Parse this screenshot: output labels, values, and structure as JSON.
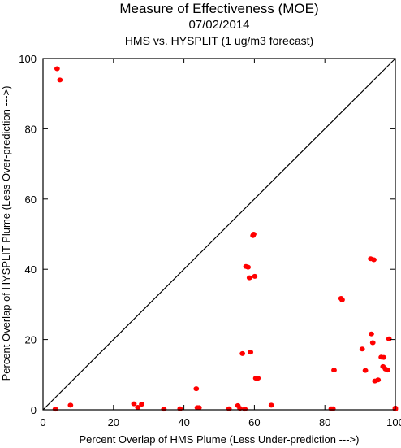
{
  "chart_data": {
    "type": "scatter",
    "title": "Measure of Effectiveness (MOE)",
    "subtitle_date": "07/02/2014",
    "subtitle": "HMS vs. HYSPLIT  (1 ug/m3 forecast)",
    "xlabel": "Percent Overlap of HMS Plume (Less Under-prediction --->)",
    "ylabel": "Percent Overlap of HYSPLIT Plume (Less Over-prediction --->)",
    "xlim": [
      0,
      100
    ],
    "ylim": [
      0,
      100
    ],
    "xticks": [
      "0",
      "20",
      "40",
      "60",
      "80",
      "100"
    ],
    "yticks": [
      "0",
      "20",
      "40",
      "60",
      "80",
      "100"
    ],
    "grid": false,
    "reference_line": "diagonal 1:1 line",
    "marker_color": "#ff0000",
    "points": [
      {
        "x": 4.0,
        "y": 97.1
      },
      {
        "x": 4.8,
        "y": 93.9
      },
      {
        "x": 3.5,
        "y": 0.2
      },
      {
        "x": 7.8,
        "y": 1.3
      },
      {
        "x": 25.8,
        "y": 1.7
      },
      {
        "x": 26.9,
        "y": 0.7
      },
      {
        "x": 28.0,
        "y": 1.6
      },
      {
        "x": 34.3,
        "y": 0.2
      },
      {
        "x": 38.9,
        "y": 0.3
      },
      {
        "x": 43.5,
        "y": 6.0
      },
      {
        "x": 43.8,
        "y": 0.6
      },
      {
        "x": 44.3,
        "y": 0.6
      },
      {
        "x": 52.8,
        "y": 0.3
      },
      {
        "x": 55.3,
        "y": 1.2
      },
      {
        "x": 55.9,
        "y": 0.4
      },
      {
        "x": 56.6,
        "y": 16.0
      },
      {
        "x": 57.3,
        "y": 0.2
      },
      {
        "x": 57.6,
        "y": 40.8
      },
      {
        "x": 58.2,
        "y": 40.6
      },
      {
        "x": 58.6,
        "y": 37.6
      },
      {
        "x": 58.9,
        "y": 16.4
      },
      {
        "x": 59.6,
        "y": 49.6
      },
      {
        "x": 59.8,
        "y": 50.0
      },
      {
        "x": 60.1,
        "y": 38.0
      },
      {
        "x": 60.4,
        "y": 9.0
      },
      {
        "x": 61.0,
        "y": 9.0
      },
      {
        "x": 64.8,
        "y": 1.3
      },
      {
        "x": 81.8,
        "y": 0.3
      },
      {
        "x": 82.3,
        "y": 0.3
      },
      {
        "x": 82.6,
        "y": 11.3
      },
      {
        "x": 84.6,
        "y": 31.7
      },
      {
        "x": 84.9,
        "y": 31.3
      },
      {
        "x": 90.6,
        "y": 17.3
      },
      {
        "x": 91.5,
        "y": 11.2
      },
      {
        "x": 93.0,
        "y": 43.0
      },
      {
        "x": 93.9,
        "y": 42.7
      },
      {
        "x": 93.2,
        "y": 21.6
      },
      {
        "x": 93.6,
        "y": 19.1
      },
      {
        "x": 94.2,
        "y": 8.2
      },
      {
        "x": 95.1,
        "y": 8.5
      },
      {
        "x": 96.0,
        "y": 15.0
      },
      {
        "x": 96.7,
        "y": 14.9
      },
      {
        "x": 96.5,
        "y": 12.3
      },
      {
        "x": 97.2,
        "y": 11.6
      },
      {
        "x": 98.2,
        "y": 20.2
      },
      {
        "x": 97.8,
        "y": 11.3
      },
      {
        "x": 100.0,
        "y": 0.5
      },
      {
        "x": 100.0,
        "y": 0.2
      }
    ]
  }
}
